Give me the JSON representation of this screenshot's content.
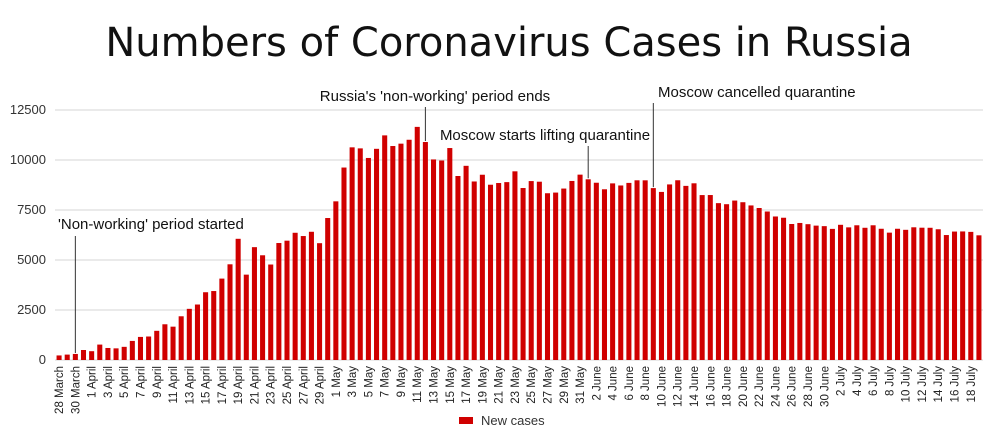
{
  "chart_data": {
    "type": "bar",
    "title": "Numbers of Coronavirus Cases in Russia",
    "xlabel": "",
    "ylabel": "",
    "ylim": [
      0,
      12500
    ],
    "yticks": [
      0,
      2500,
      5000,
      7500,
      10000,
      12500
    ],
    "grid": true,
    "legend_position": "bottom",
    "color": "#d00000",
    "start_date": "28 March",
    "categories": [
      "28 March",
      "29 March",
      "30 March",
      "31 March",
      "1 April",
      "2 April",
      "3 April",
      "4 April",
      "5 April",
      "6 April",
      "7 April",
      "8 April",
      "9 April",
      "10 April",
      "11 April",
      "12 April",
      "13 April",
      "14 April",
      "15 April",
      "16 April",
      "17 April",
      "18 April",
      "19 April",
      "20 April",
      "21 April",
      "22 April",
      "23 April",
      "24 April",
      "25 April",
      "26 April",
      "27 April",
      "28 April",
      "29 April",
      "30 April",
      "1 May",
      "2 May",
      "3 May",
      "4 May",
      "5 May",
      "6 May",
      "7 May",
      "8 May",
      "9 May",
      "10 May",
      "11 May",
      "12 May",
      "13 May",
      "14 May",
      "15 May",
      "16 May",
      "17 May",
      "18 May",
      "19 May",
      "20 May",
      "21 May",
      "22 May",
      "23 May",
      "24 May",
      "25 May",
      "26 May",
      "27 May",
      "28 May",
      "29 May",
      "30 May",
      "31 May",
      "1 June",
      "2 June",
      "3 June",
      "4 June",
      "5 June",
      "6 June",
      "7 June",
      "8 June",
      "9 June",
      "10 June",
      "11 June",
      "12 June",
      "13 June",
      "14 June",
      "15 June",
      "16 June",
      "17 June",
      "18 June",
      "19 June",
      "20 June",
      "21 June",
      "22 June",
      "23 June",
      "24 June",
      "25 June",
      "26 June",
      "27 June",
      "28 June",
      "29 June",
      "30 June",
      "1 July",
      "2 July",
      "3 July",
      "4 July",
      "5 July",
      "6 July",
      "7 July",
      "8 July",
      "9 July",
      "10 July",
      "11 July",
      "12 July",
      "13 July",
      "14 July",
      "15 July",
      "16 July",
      "17 July",
      "18 July",
      "19 July"
    ],
    "x_tick_labels": [
      "28 March",
      "30 March",
      "1 April",
      "3 April",
      "5 April",
      "7 April",
      "9 April",
      "11 April",
      "13 April",
      "15 April",
      "17 April",
      "19 April",
      "21 April",
      "23 April",
      "25 April",
      "27 April",
      "29 April",
      "1 May",
      "3 May",
      "5 May",
      "7 May",
      "9 May",
      "11 May",
      "13 May",
      "15 May",
      "17 May",
      "19 May",
      "21 May",
      "23 May",
      "25 May",
      "27 May",
      "29 May",
      "31 May",
      "2 June",
      "4 June",
      "6 June",
      "8 June",
      "10 June",
      "12 June",
      "14 June",
      "16 June",
      "18 June",
      "20 June",
      "22 June",
      "24 June",
      "26 June",
      "28 June",
      "30 June",
      "2 July",
      "4 July",
      "6 July",
      "8 July",
      "10 July",
      "12 July",
      "14 July",
      "16 July",
      "18 July"
    ],
    "series": [
      {
        "name": "New cases",
        "values": [
          228,
          270,
          302,
          500,
          440,
          771,
          601,
          582,
          658,
          954,
          1154,
          1175,
          1459,
          1786,
          1667,
          2186,
          2558,
          2774,
          3388,
          3448,
          4070,
          4785,
          6060,
          4268,
          5642,
          5236,
          4774,
          5849,
          5966,
          6361,
          6198,
          6411,
          5841,
          7099,
          7933,
          9623,
          10633,
          10581,
          10102,
          10559,
          11231,
          10699,
          10817,
          11012,
          11656,
          10899,
          10028,
          9974,
          10598,
          9200,
          9709,
          8926,
          9263,
          8764,
          8849,
          8894,
          9434,
          8599,
          8946,
          8915,
          8338,
          8371,
          8572,
          8952,
          9268,
          9035,
          8863,
          8536,
          8831,
          8726,
          8855,
          8985,
          8984,
          8595,
          8404,
          8779,
          8987,
          8706,
          8835,
          8246,
          8248,
          7843,
          7790,
          7972,
          7889,
          7728,
          7600,
          7425,
          7176,
          7113,
          6800,
          6852,
          6791,
          6719,
          6693,
          6556,
          6760,
          6632,
          6736,
          6611,
          6736,
          6562,
          6368,
          6562,
          6509,
          6635,
          6615,
          6611,
          6537,
          6248,
          6422,
          6428,
          6406,
          6234
        ]
      }
    ],
    "annotations": [
      {
        "text": "'Non-working' period started",
        "date": "30 March"
      },
      {
        "text": "Russia's 'non-working' period ends",
        "date": "12 May"
      },
      {
        "text": "Moscow starts lifting quarantine",
        "date": "1 June"
      },
      {
        "text": "Moscow cancelled quarantine",
        "date": "9 June"
      }
    ]
  }
}
